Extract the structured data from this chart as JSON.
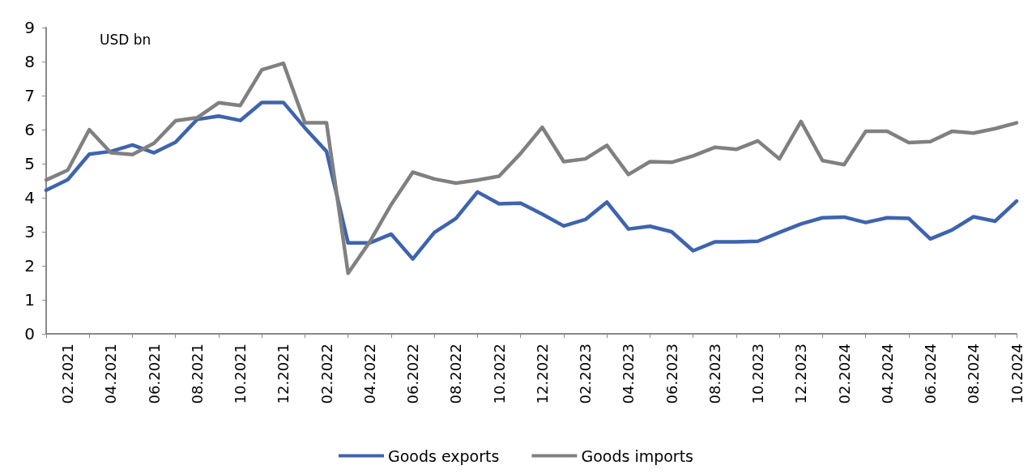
{
  "chart_data": {
    "type": "line",
    "annotations": [
      "USD bn"
    ],
    "categories": [
      null,
      "02.2021",
      null,
      "04.2021",
      null,
      "06.2021",
      null,
      "08.2021",
      null,
      "10.2021",
      null,
      "12.2021",
      null,
      "02.2022",
      null,
      "04.2022",
      null,
      "06.2022",
      null,
      "08.2022",
      null,
      "10.2022",
      null,
      "12.2022",
      null,
      "02.2023",
      null,
      "04.2023",
      null,
      "06.2023",
      null,
      "08.2023",
      null,
      "10.2023",
      null,
      "12.2023",
      null,
      "02.2024",
      null,
      "04.2024",
      null,
      "06.2024",
      null,
      "08.2024",
      null,
      "10.2024"
    ],
    "series": [
      {
        "name": "Goods exports",
        "color": "#3e64ae",
        "values": [
          4.22,
          4.53,
          5.28,
          5.36,
          5.55,
          5.32,
          5.63,
          6.3,
          6.4,
          6.27,
          6.8,
          6.8,
          6.05,
          5.36,
          2.67,
          2.67,
          2.93,
          2.2,
          2.98,
          3.39,
          4.17,
          3.82,
          3.84,
          3.52,
          3.17,
          3.36,
          3.87,
          3.08,
          3.16,
          3.0,
          2.44,
          2.7,
          2.7,
          2.72,
          2.98,
          3.23,
          3.41,
          3.43,
          3.27,
          3.41,
          3.39,
          2.79,
          3.05,
          3.44,
          3.31,
          3.9
        ]
      },
      {
        "name": "Goods imports",
        "color": "#808080",
        "values": [
          4.52,
          4.81,
          6.0,
          5.32,
          5.27,
          5.6,
          6.26,
          6.35,
          6.79,
          6.71,
          7.76,
          7.95,
          6.2,
          6.2,
          1.78,
          2.7,
          3.8,
          4.75,
          4.55,
          4.43,
          4.52,
          4.63,
          5.3,
          6.07,
          5.06,
          5.14,
          5.54,
          4.68,
          5.06,
          5.04,
          5.23,
          5.48,
          5.42,
          5.67,
          5.14,
          6.24,
          5.09,
          4.97,
          5.95,
          5.95,
          5.62,
          5.65,
          5.95,
          5.9,
          6.03,
          6.2
        ]
      }
    ],
    "ylim": [
      0,
      9
    ],
    "yticks": [
      0,
      1,
      2,
      3,
      4,
      5,
      6,
      7,
      8,
      9
    ],
    "grid": false,
    "legend": "bottom",
    "marker": "none",
    "line_style": "solid"
  }
}
